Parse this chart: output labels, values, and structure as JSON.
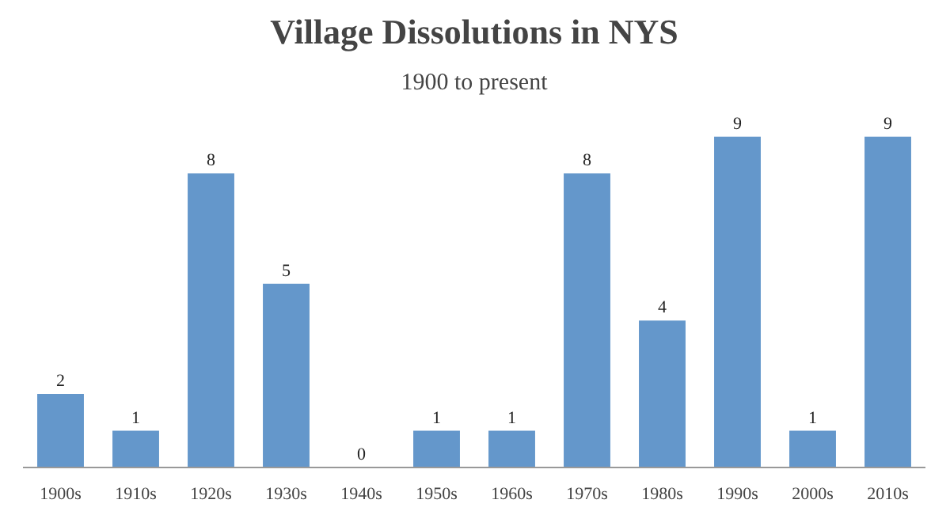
{
  "chart_data": {
    "type": "bar",
    "title": "Village Dissolutions in NYS",
    "subtitle": "1900 to present",
    "categories": [
      "1900s",
      "1910s",
      "1920s",
      "1930s",
      "1940s",
      "1950s",
      "1960s",
      "1970s",
      "1980s",
      "1990s",
      "2000s",
      "2010s"
    ],
    "values": [
      2,
      1,
      8,
      5,
      0,
      1,
      1,
      8,
      4,
      9,
      1,
      9
    ],
    "color": "#6497cb",
    "data_labels": true
  }
}
